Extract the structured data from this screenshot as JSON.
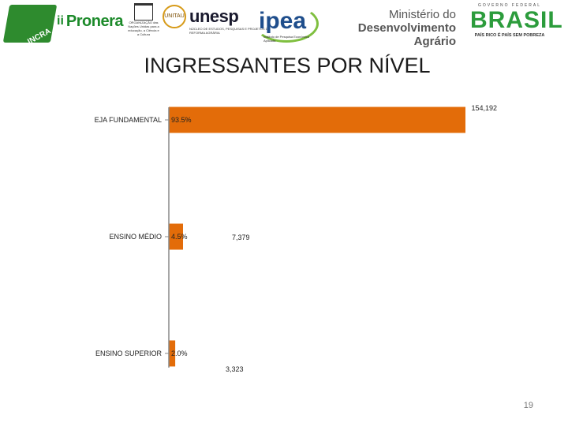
{
  "header": {
    "logos": {
      "incra": "INCRA",
      "pronera": "Pronera",
      "unesco_text": "ORGANIZAÇÃO das Nações Unidas para a educação, a Ciência e a Cultura",
      "unitau": "UNITAU",
      "unesp": "unesp",
      "unesp_text": "NÚCLEO DE ESTUDOS, PESQUISAS E PROJETOS DE REFORMA AGRÁRIA",
      "ipea": "ipea",
      "ipea_text": "Instituto de Pesquisa Econômica Aplicada",
      "ministerio_line1": "Ministério do",
      "ministerio_line2": "Desenvolvimento Agrário",
      "brasil_top": "GOVERNO FEDERAL",
      "brasil": "BRASIL",
      "brasil_bottom": "PAÍS RICO É PAÍS SEM POBREZA"
    }
  },
  "title": "INGRESSANTES POR NÍVEL",
  "page_number": "19",
  "colors": {
    "bar": "#e36c09",
    "axis": "#888888"
  },
  "chart_data": {
    "type": "bar",
    "orientation": "horizontal",
    "categories": [
      "EJA FUNDAMENTAL",
      "ENSINO MÉDIO",
      "ENSINO SUPERIOR"
    ],
    "values": [
      154192,
      7379,
      3323
    ],
    "value_labels": [
      "154,192",
      "7,379",
      "3,323"
    ],
    "percent_labels": [
      "93.5%",
      "4.5%",
      "2.0%"
    ],
    "xlim": [
      0,
      154192
    ]
  }
}
